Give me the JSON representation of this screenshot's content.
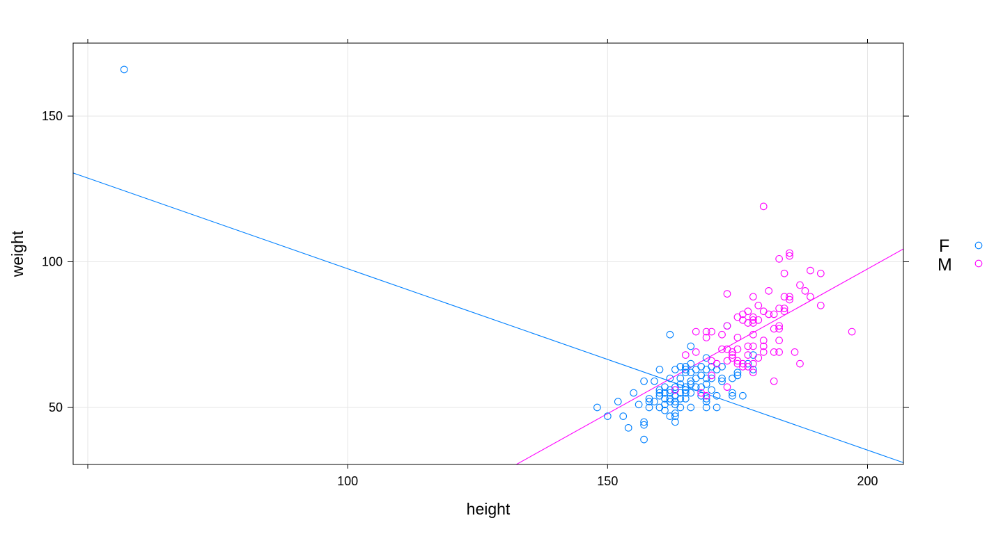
{
  "chart_data": {
    "type": "scatter",
    "title": "",
    "xlabel": "height",
    "ylabel": "weight",
    "xlim": [
      47,
      207
    ],
    "ylim": [
      30,
      175
    ],
    "x_ticks": [
      50,
      100,
      150,
      200
    ],
    "x_tick_labels": [
      "",
      "100",
      "150",
      "200"
    ],
    "y_ticks": [
      50,
      100,
      150
    ],
    "y_tick_labels": [
      "50",
      "100",
      "150"
    ],
    "grid": true,
    "legend": {
      "position": "right",
      "entries": [
        {
          "label": "F",
          "color": "#0080ff"
        },
        {
          "label": "M",
          "color": "#ff00ff"
        }
      ]
    },
    "series": [
      {
        "name": "F",
        "color": "#0080ff",
        "marker": "open-circle",
        "points": [
          [
            57,
            166
          ],
          [
            148,
            50
          ],
          [
            150,
            47
          ],
          [
            152,
            52
          ],
          [
            153,
            47
          ],
          [
            154,
            43
          ],
          [
            155,
            55
          ],
          [
            156,
            51
          ],
          [
            157,
            39
          ],
          [
            157,
            44
          ],
          [
            157,
            45
          ],
          [
            157,
            59
          ],
          [
            158,
            50
          ],
          [
            158,
            52
          ],
          [
            158,
            53
          ],
          [
            159,
            52
          ],
          [
            159,
            59
          ],
          [
            160,
            50
          ],
          [
            160,
            54
          ],
          [
            160,
            55
          ],
          [
            160,
            56
          ],
          [
            160,
            63
          ],
          [
            161,
            49
          ],
          [
            161,
            51
          ],
          [
            161,
            53
          ],
          [
            161,
            55
          ],
          [
            161,
            57
          ],
          [
            162,
            47
          ],
          [
            162,
            52
          ],
          [
            162,
            53
          ],
          [
            162,
            55
          ],
          [
            162,
            56
          ],
          [
            162,
            60
          ],
          [
            162,
            75
          ],
          [
            163,
            45
          ],
          [
            163,
            47
          ],
          [
            163,
            48
          ],
          [
            163,
            51
          ],
          [
            163,
            52
          ],
          [
            163,
            54
          ],
          [
            163,
            56
          ],
          [
            163,
            57
          ],
          [
            163,
            63
          ],
          [
            164,
            50
          ],
          [
            164,
            53
          ],
          [
            164,
            55
          ],
          [
            164,
            58
          ],
          [
            164,
            60
          ],
          [
            164,
            64
          ],
          [
            165,
            53
          ],
          [
            165,
            55
          ],
          [
            165,
            56
          ],
          [
            165,
            57
          ],
          [
            165,
            62
          ],
          [
            165,
            63
          ],
          [
            165,
            64
          ],
          [
            166,
            50
          ],
          [
            166,
            55
          ],
          [
            166,
            58
          ],
          [
            166,
            59
          ],
          [
            166,
            62
          ],
          [
            166,
            65
          ],
          [
            166,
            71
          ],
          [
            167,
            57
          ],
          [
            167,
            60
          ],
          [
            167,
            63
          ],
          [
            168,
            54
          ],
          [
            168,
            57
          ],
          [
            168,
            61
          ],
          [
            168,
            64
          ],
          [
            169,
            50
          ],
          [
            169,
            52
          ],
          [
            169,
            53
          ],
          [
            169,
            58
          ],
          [
            169,
            60
          ],
          [
            169,
            63
          ],
          [
            169,
            67
          ],
          [
            170,
            56
          ],
          [
            170,
            60
          ],
          [
            170,
            64
          ],
          [
            171,
            50
          ],
          [
            171,
            54
          ],
          [
            171,
            63
          ],
          [
            172,
            59
          ],
          [
            172,
            60
          ],
          [
            172,
            64
          ],
          [
            173,
            78
          ],
          [
            174,
            54
          ],
          [
            174,
            55
          ],
          [
            174,
            60
          ],
          [
            175,
            61
          ],
          [
            175,
            62
          ],
          [
            176,
            54
          ],
          [
            177,
            65
          ],
          [
            178,
            63
          ],
          [
            178,
            68
          ]
        ]
      },
      {
        "name": "M",
        "color": "#ff00ff",
        "marker": "open-circle",
        "points": [
          [
            163,
            56
          ],
          [
            165,
            68
          ],
          [
            167,
            69
          ],
          [
            167,
            76
          ],
          [
            168,
            55
          ],
          [
            169,
            54
          ],
          [
            169,
            74
          ],
          [
            169,
            76
          ],
          [
            170,
            61
          ],
          [
            170,
            66
          ],
          [
            170,
            76
          ],
          [
            171,
            65
          ],
          [
            172,
            70
          ],
          [
            172,
            75
          ],
          [
            173,
            57
          ],
          [
            173,
            66
          ],
          [
            173,
            70
          ],
          [
            173,
            78
          ],
          [
            173,
            89
          ],
          [
            174,
            67
          ],
          [
            174,
            68
          ],
          [
            174,
            69
          ],
          [
            175,
            65
          ],
          [
            175,
            66
          ],
          [
            175,
            70
          ],
          [
            175,
            74
          ],
          [
            175,
            81
          ],
          [
            176,
            64
          ],
          [
            176,
            65
          ],
          [
            176,
            80
          ],
          [
            176,
            82
          ],
          [
            177,
            64
          ],
          [
            177,
            68
          ],
          [
            177,
            71
          ],
          [
            177,
            79
          ],
          [
            177,
            83
          ],
          [
            178,
            62
          ],
          [
            178,
            65
          ],
          [
            178,
            71
          ],
          [
            178,
            75
          ],
          [
            178,
            79
          ],
          [
            178,
            80
          ],
          [
            178,
            81
          ],
          [
            178,
            88
          ],
          [
            179,
            67
          ],
          [
            179,
            80
          ],
          [
            179,
            85
          ],
          [
            180,
            69
          ],
          [
            180,
            71
          ],
          [
            180,
            73
          ],
          [
            180,
            83
          ],
          [
            180,
            119
          ],
          [
            181,
            82
          ],
          [
            181,
            90
          ],
          [
            182,
            59
          ],
          [
            182,
            69
          ],
          [
            182,
            77
          ],
          [
            182,
            82
          ],
          [
            183,
            69
          ],
          [
            183,
            73
          ],
          [
            183,
            77
          ],
          [
            183,
            78
          ],
          [
            183,
            84
          ],
          [
            183,
            101
          ],
          [
            184,
            83
          ],
          [
            184,
            84
          ],
          [
            184,
            88
          ],
          [
            184,
            96
          ],
          [
            185,
            87
          ],
          [
            185,
            88
          ],
          [
            185,
            102
          ],
          [
            185,
            103
          ],
          [
            186,
            69
          ],
          [
            187,
            65
          ],
          [
            187,
            92
          ],
          [
            188,
            90
          ],
          [
            189,
            88
          ],
          [
            189,
            97
          ],
          [
            191,
            85
          ],
          [
            191,
            96
          ],
          [
            197,
            76
          ]
        ]
      }
    ],
    "fit_lines": [
      {
        "series": "F",
        "color": "#0080ff",
        "from": [
          47,
          130.6
        ],
        "to": [
          207,
          31.0
        ],
        "slope": -0.62,
        "intercept": 159.8
      },
      {
        "series": "M",
        "color": "#ff00ff",
        "from": [
          132,
          30
        ],
        "to": [
          207,
          104.5
        ],
        "slope": 0.99,
        "intercept": -101
      }
    ]
  }
}
